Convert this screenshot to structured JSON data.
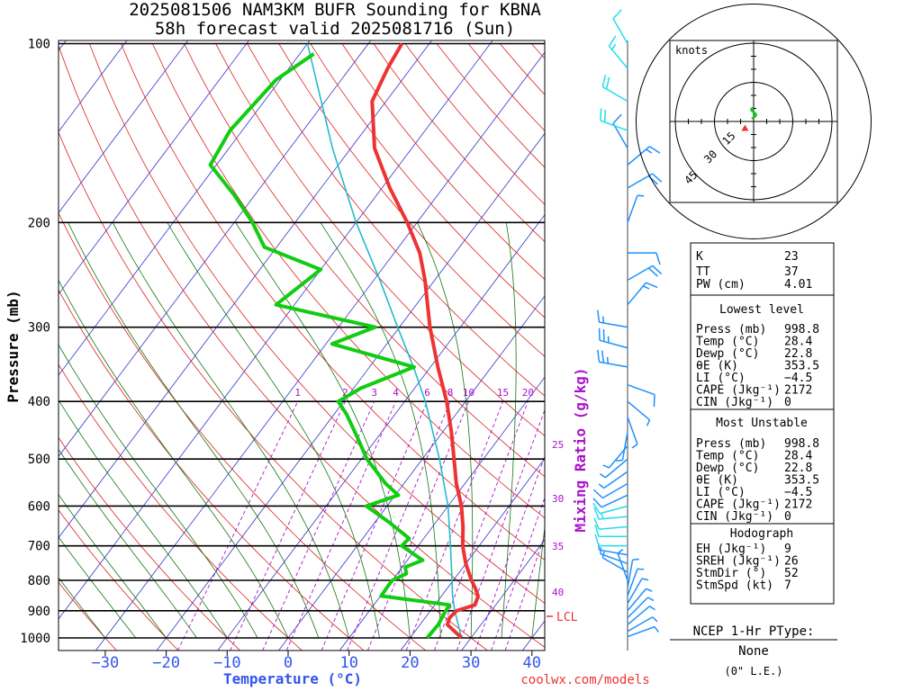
{
  "title_line1": "2025081506 NAM3KM BUFR Sounding for KBNA",
  "title_line2": "58h forecast valid 2025081716 (Sun)",
  "credit": "coolwx.com/models",
  "colors": {
    "temp": "#ee3333",
    "dew": "#11cc11",
    "parcel": "#22bbcc",
    "lcl": "#ee3333",
    "isotherm": "#3333cc",
    "dry_adiabat": "#dd2222",
    "moist_adiabat": "#117711",
    "mixing": "#aa11cc",
    "wind": "#1e90ff",
    "wind_upper": "#22ddee",
    "axis_blue": "#3355ee"
  },
  "chart_data": {
    "type": "skew-t",
    "ylabel": "Pressure (mb)",
    "xlabel": "Temperature (°C)",
    "mixing_label": "Mixing Ratio (g/kg)",
    "pressure_ticks": [
      100,
      200,
      300,
      400,
      500,
      600,
      700,
      800,
      900,
      1000
    ],
    "temp_ticks": [
      -30,
      -20,
      -10,
      0,
      10,
      20,
      30,
      40
    ],
    "mixing_ratio_lines": [
      1,
      2,
      3,
      4,
      6,
      8,
      10,
      15,
      20,
      25,
      30,
      35,
      40
    ],
    "mixing_top_labels": [
      "1",
      "2",
      "3",
      "4",
      "6",
      "8",
      "10",
      "15",
      "20"
    ],
    "mixing_side_labels": [
      "25",
      "30",
      "35",
      "40"
    ],
    "lcl_label": "LCL",
    "lcl_pressure": 900,
    "temperature": [
      {
        "p": 998.8,
        "t": 28.4
      },
      {
        "p": 975,
        "t": 26.5
      },
      {
        "p": 950,
        "t": 24.5
      },
      {
        "p": 925,
        "t": 24.0
      },
      {
        "p": 900,
        "t": 24.3
      },
      {
        "p": 880,
        "t": 26.6
      },
      {
        "p": 850,
        "t": 26.0
      },
      {
        "p": 825,
        "t": 24.6
      },
      {
        "p": 800,
        "t": 23.0
      },
      {
        "p": 750,
        "t": 20.0
      },
      {
        "p": 700,
        "t": 17.3
      },
      {
        "p": 650,
        "t": 15.0
      },
      {
        "p": 600,
        "t": 12.2
      },
      {
        "p": 550,
        "t": 8.6
      },
      {
        "p": 500,
        "t": 5.2
      },
      {
        "p": 450,
        "t": 1.4
      },
      {
        "p": 400,
        "t": -3.1
      },
      {
        "p": 350,
        "t": -8.8
      },
      {
        "p": 300,
        "t": -15.0
      },
      {
        "p": 250,
        "t": -21.6
      },
      {
        "p": 225,
        "t": -25.8
      },
      {
        "p": 200,
        "t": -31.6
      },
      {
        "p": 175,
        "t": -38.7
      },
      {
        "p": 150,
        "t": -46.1
      },
      {
        "p": 125,
        "t": -52.3
      },
      {
        "p": 110,
        "t": -53.8
      },
      {
        "p": 100,
        "t": -54.5
      }
    ],
    "dewpoint": [
      {
        "p": 998.8,
        "t": 22.8
      },
      {
        "p": 950,
        "t": 23.0
      },
      {
        "p": 910,
        "t": 22.6
      },
      {
        "p": 880,
        "t": 22.4
      },
      {
        "p": 850,
        "t": 10.1
      },
      {
        "p": 820,
        "t": 10.0
      },
      {
        "p": 800,
        "t": 10.0
      },
      {
        "p": 780,
        "t": 11.5
      },
      {
        "p": 760,
        "t": 10.5
      },
      {
        "p": 740,
        "t": 12.5
      },
      {
        "p": 700,
        "t": 7.3
      },
      {
        "p": 680,
        "t": 7.6
      },
      {
        "p": 640,
        "t": 2.5
      },
      {
        "p": 600,
        "t": -3.4
      },
      {
        "p": 575,
        "t": 0.5
      },
      {
        "p": 550,
        "t": -3.0
      },
      {
        "p": 500,
        "t": -9.1
      },
      {
        "p": 460,
        "t": -13.3
      },
      {
        "p": 420,
        "t": -18.0
      },
      {
        "p": 400,
        "t": -20.9
      },
      {
        "p": 380,
        "t": -18.8
      },
      {
        "p": 350,
        "t": -12.7
      },
      {
        "p": 320,
        "t": -29.0
      },
      {
        "p": 300,
        "t": -24.0
      },
      {
        "p": 275,
        "t": -43.0
      },
      {
        "p": 240,
        "t": -40.0
      },
      {
        "p": 220,
        "t": -52.0
      },
      {
        "p": 200,
        "t": -57.0
      },
      {
        "p": 180,
        "t": -63.3
      },
      {
        "p": 160,
        "t": -71.0
      },
      {
        "p": 140,
        "t": -72.0
      },
      {
        "p": 115,
        "t": -70.7
      },
      {
        "p": 104,
        "t": -67.7
      }
    ],
    "parcel": [
      {
        "p": 998.8,
        "t": 28.4
      },
      {
        "p": 900,
        "t": 24.0
      },
      {
        "p": 850,
        "t": 21.8
      },
      {
        "p": 800,
        "t": 19.8
      },
      {
        "p": 700,
        "t": 15.3
      },
      {
        "p": 600,
        "t": 10.0
      },
      {
        "p": 500,
        "t": 2.8
      },
      {
        "p": 400,
        "t": -6.6
      },
      {
        "p": 350,
        "t": -12.8
      },
      {
        "p": 300,
        "t": -20.3
      },
      {
        "p": 250,
        "t": -29.0
      },
      {
        "p": 200,
        "t": -40.0
      },
      {
        "p": 150,
        "t": -53.0
      },
      {
        "p": 100,
        "t": -70.0
      }
    ],
    "hodograph": {
      "unit_label": "knots",
      "ring_labels": [
        "15",
        "30",
        "45"
      ],
      "path": [
        [
          -1,
          -5
        ],
        [
          -2,
          -6
        ],
        [
          -3,
          -8
        ],
        [
          -1,
          -10
        ],
        [
          2,
          -12
        ],
        [
          3,
          -14
        ],
        [
          2,
          -16
        ],
        [
          -1,
          -18
        ],
        [
          -2,
          -19
        ]
      ],
      "storm_motion": [
        52,
        7
      ]
    }
  },
  "table": {
    "k_label": "K",
    "k": "23",
    "tt_label": "TT",
    "tt": "37",
    "pw_label": "PW (cm)",
    "pw": "4.01",
    "lowest": {
      "header": "Lowest level",
      "rows": [
        {
          "label": "Press (mb)",
          "value": "998.8"
        },
        {
          "label": "Temp (°C)",
          "value": "28.4"
        },
        {
          "label": "Dewp (°C)",
          "value": "22.8"
        },
        {
          "label": "θE (K)",
          "value": "353.5"
        },
        {
          "label": "LI (°C)",
          "value": "−4.5"
        },
        {
          "label": "CAPE (Jkg⁻¹)",
          "value": "2172"
        },
        {
          "label": "CIN (Jkg⁻¹)",
          "value": "0"
        }
      ]
    },
    "unstable": {
      "header": "Most Unstable",
      "rows": [
        {
          "label": "Press (mb)",
          "value": "998.8"
        },
        {
          "label": "Temp (°C)",
          "value": "28.4"
        },
        {
          "label": "Dewp (°C)",
          "value": "22.8"
        },
        {
          "label": "θE (K)",
          "value": "353.5"
        },
        {
          "label": "LI (°C)",
          "value": "−4.5"
        },
        {
          "label": "CAPE (Jkg⁻¹)",
          "value": "2172"
        },
        {
          "label": "CIN (Jkg⁻¹)",
          "value": "0"
        }
      ]
    },
    "hodo": {
      "header": "Hodograph",
      "rows": [
        {
          "label": "EH (Jkg⁻¹)",
          "value": "9"
        },
        {
          "label": "SREH (Jkg⁻¹)",
          "value": "26"
        },
        {
          "label": "StmDir (°)",
          "value": "52"
        },
        {
          "label": "StmSpd (kt)",
          "value": "7"
        }
      ]
    }
  },
  "ptype": {
    "title": "NCEP 1-Hr PType:",
    "value": "None",
    "amount": "(0\" L.E.)"
  },
  "winds": [
    {
      "p": 995,
      "dir": 70,
      "spd": 6
    },
    {
      "p": 975,
      "dir": 60,
      "spd": 6
    },
    {
      "p": 950,
      "dir": 50,
      "spd": 7
    },
    {
      "p": 925,
      "dir": 45,
      "spd": 7
    },
    {
      "p": 900,
      "dir": 40,
      "spd": 6
    },
    {
      "p": 875,
      "dir": 30,
      "spd": 6
    },
    {
      "p": 850,
      "dir": 20,
      "spd": 5
    },
    {
      "p": 825,
      "dir": 10,
      "spd": 5
    },
    {
      "p": 800,
      "dir": 340,
      "spd": 4
    },
    {
      "p": 775,
      "dir": 300,
      "spd": 4
    },
    {
      "p": 750,
      "dir": 290,
      "spd": 6
    },
    {
      "p": 725,
      "dir": 280,
      "spd": 7
    },
    {
      "p": 700,
      "dir": 270,
      "spd": 10
    },
    {
      "p": 675,
      "dir": 270,
      "spd": 10
    },
    {
      "p": 650,
      "dir": 265,
      "spd": 12
    },
    {
      "p": 625,
      "dir": 265,
      "spd": 13
    },
    {
      "p": 600,
      "dir": 255,
      "spd": 11
    },
    {
      "p": 575,
      "dir": 245,
      "spd": 10
    },
    {
      "p": 550,
      "dir": 240,
      "spd": 8
    },
    {
      "p": 525,
      "dir": 235,
      "spd": 7
    },
    {
      "p": 500,
      "dir": 230,
      "spd": 6
    },
    {
      "p": 475,
      "dir": 220,
      "spd": 5
    },
    {
      "p": 450,
      "dir": 190,
      "spd": 4
    },
    {
      "p": 425,
      "dir": 160,
      "spd": 4
    },
    {
      "p": 400,
      "dir": 130,
      "spd": 5
    },
    {
      "p": 375,
      "dir": 110,
      "spd": 10
    },
    {
      "p": 350,
      "dir": 280,
      "spd": 25
    },
    {
      "p": 325,
      "dir": 285,
      "spd": 25
    },
    {
      "p": 300,
      "dir": 280,
      "spd": 15
    },
    {
      "p": 275,
      "dir": 40,
      "spd": 15
    },
    {
      "p": 250,
      "dir": 60,
      "spd": 20
    },
    {
      "p": 225,
      "dir": 90,
      "spd": 10
    },
    {
      "p": 200,
      "dir": 20,
      "spd": 5
    },
    {
      "p": 175,
      "dir": 60,
      "spd": 20
    },
    {
      "p": 160,
      "dir": 50,
      "spd": 15
    },
    {
      "p": 150,
      "dir": 330,
      "spd": 10
    },
    {
      "p": 140,
      "dir": 290,
      "spd": 20
    },
    {
      "p": 125,
      "dir": 300,
      "spd": 20
    },
    {
      "p": 110,
      "dir": 320,
      "spd": 15
    },
    {
      "p": 100,
      "dir": 330,
      "spd": 10
    }
  ]
}
